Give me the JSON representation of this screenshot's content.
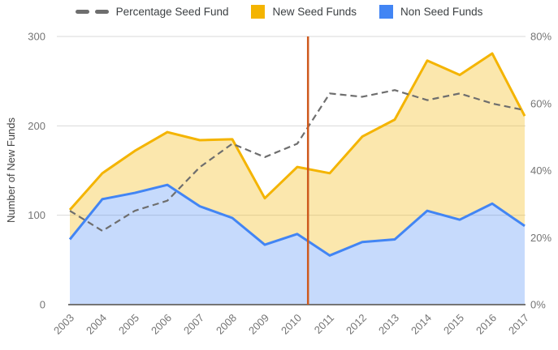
{
  "legend": [
    {
      "label": "Percentage Seed Fund",
      "type": "dashed-line",
      "color": "#6e6e6e"
    },
    {
      "label": "New Seed Funds",
      "type": "square",
      "color": "#F4B400"
    },
    {
      "label": "Non Seed Funds",
      "type": "square",
      "color": "#4285F4"
    }
  ],
  "chart_data": {
    "type": "area",
    "stacked": true,
    "title": "",
    "ylabel": "Number of New Funds",
    "x": [
      2003,
      2004,
      2005,
      2006,
      2007,
      2008,
      2009,
      2010,
      2011,
      2012,
      2013,
      2014,
      2015,
      2016,
      2017
    ],
    "series": [
      {
        "name": "Non Seed Funds",
        "axis": "left",
        "color": "#4285F4",
        "fill": "rgba(66,133,244,0.30)",
        "values": [
          73,
          118,
          125,
          134,
          110,
          97,
          67,
          79,
          55,
          70,
          73,
          105,
          95,
          113,
          88
        ]
      },
      {
        "name": "New Seed Funds",
        "axis": "left",
        "color": "#F4B400",
        "fill": "rgba(244,180,0,0.32)",
        "stacked_on": "Non Seed Funds",
        "values": [
          33,
          29,
          47,
          59,
          74,
          88,
          52,
          75,
          92,
          118,
          134,
          168,
          162,
          168,
          123
        ]
      },
      {
        "name": "Percentage Seed Fund",
        "axis": "right",
        "color": "#6e6e6e",
        "line_style": "dashed",
        "values": [
          28,
          22,
          28,
          31,
          41,
          48,
          44,
          48,
          63,
          62,
          64,
          61,
          63,
          60,
          58
        ]
      }
    ],
    "y_left": {
      "title": "Number of New Funds",
      "ticks": [
        0,
        100,
        200,
        300
      ],
      "range": [
        0,
        300
      ]
    },
    "y_right": {
      "ticks": [
        "0%",
        "20%",
        "40%",
        "60%",
        "80%"
      ],
      "range": [
        0,
        80
      ]
    },
    "annotations": [
      {
        "type": "vertical-line",
        "x": 2010.33,
        "color": "#CE5A1E"
      }
    ],
    "grid": {
      "color": "#dadada",
      "axis_line_color": "#757575",
      "tick_label_color": "#757575"
    },
    "legend_position": "top"
  }
}
